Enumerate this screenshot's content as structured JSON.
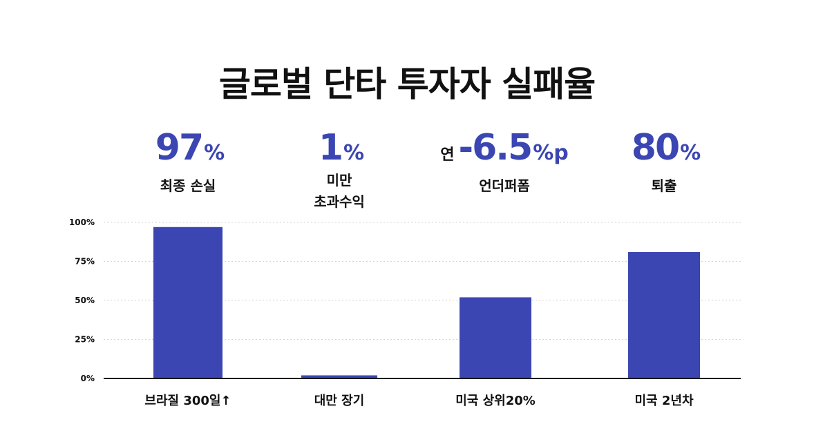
{
  "title": "글로벌 단타 투자자 실패율",
  "stats": [
    {
      "prefix": "",
      "value": "97",
      "unit": "%",
      "label_lines": [
        "최종 손실"
      ]
    },
    {
      "prefix": "",
      "value": "1",
      "unit": "%",
      "label_lines": [
        "미만",
        "초과수익"
      ]
    },
    {
      "prefix": "연",
      "value": "-6.5",
      "unit": "%p",
      "label_lines": [
        "언더퍼폼"
      ]
    },
    {
      "prefix": "",
      "value": "80",
      "unit": "%",
      "label_lines": [
        "퇴출"
      ]
    }
  ],
  "chart_data": {
    "type": "bar",
    "categories": [
      "브라질 300일↑",
      "대만 장기",
      "미국 상위20%",
      "미국 2년차"
    ],
    "values": [
      97,
      2,
      52,
      81
    ],
    "ylim": [
      0,
      100
    ],
    "yticks": [
      "0%",
      "25%",
      "50%",
      "75%",
      "100%"
    ],
    "grid": true,
    "bar_color": "#3b46b2"
  }
}
